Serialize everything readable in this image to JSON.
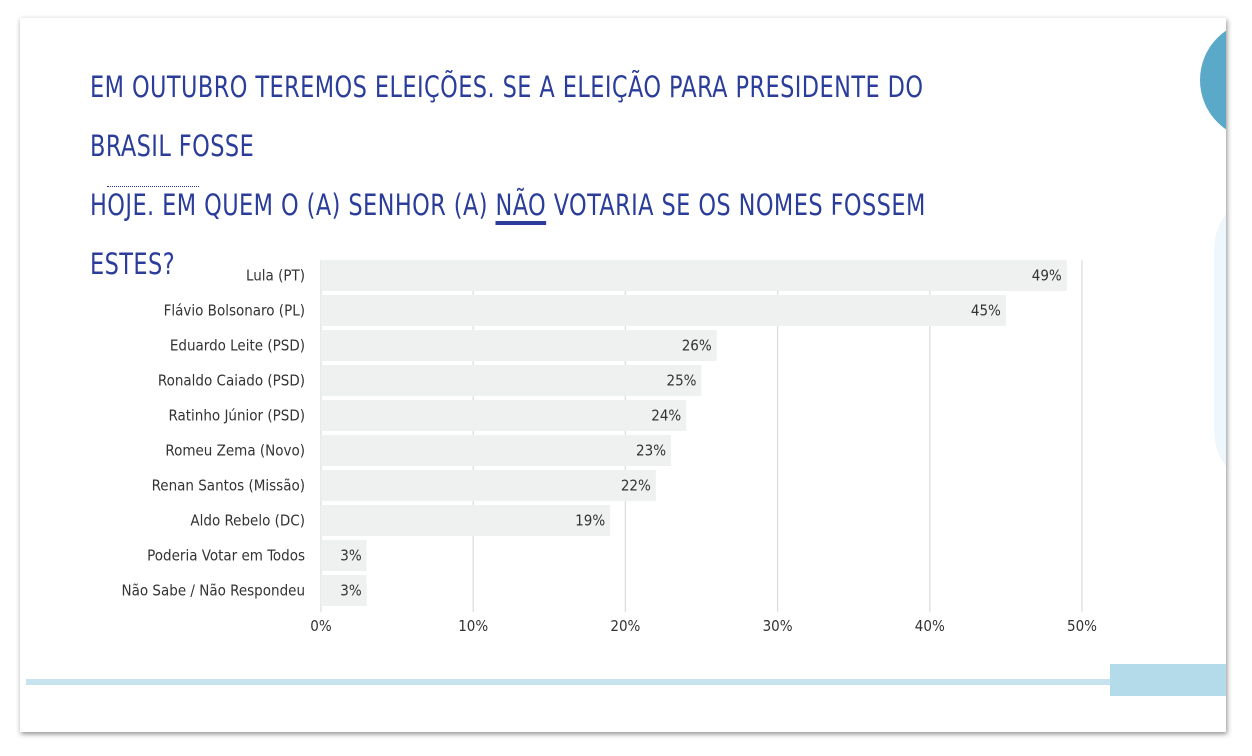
{
  "title": {
    "line1": "EM OUTUBRO TEREMOS ELEIÇÕES. SE A ELEIÇÃO PARA PRESIDENTE DO BRASIL FOSSE",
    "line2_before": "HOJE. EM QUEM O (A) SENHOR (A) ",
    "line2_emph": "NÃO",
    "line2_after": " VOTARIA SE OS NOMES FOSSEM ESTES?"
  },
  "colors": {
    "title": "#2b3d9a",
    "bar": "#eff0f0",
    "grid": "#dddddd",
    "accent_circle": "#5aa9c9",
    "bottom_line": "#c7e3ef"
  },
  "chart_data": {
    "type": "bar",
    "orientation": "horizontal",
    "categories": [
      "Lula (PT)",
      "Flávio Bolsonaro (PL)",
      "Eduardo Leite (PSD)",
      "Ronaldo Caiado (PSD)",
      "Ratinho Júnior (PSD)",
      "Romeu Zema (Novo)",
      "Renan Santos (Missão)",
      "Aldo Rebelo (DC)",
      "Poderia Votar em Todos",
      "Não Sabe / Não Respondeu"
    ],
    "values": [
      49,
      45,
      26,
      25,
      24,
      23,
      22,
      19,
      3,
      3
    ],
    "value_labels": [
      "49%",
      "45%",
      "26%",
      "25%",
      "24%",
      "23%",
      "22%",
      "19%",
      "3%",
      "3%"
    ],
    "xlim": [
      0,
      50
    ],
    "xticks": [
      0,
      10,
      20,
      30,
      40,
      50
    ],
    "xtick_labels": [
      "0%",
      "10%",
      "20%",
      "30%",
      "40%",
      "50%"
    ],
    "grid": true,
    "legend": "none"
  }
}
